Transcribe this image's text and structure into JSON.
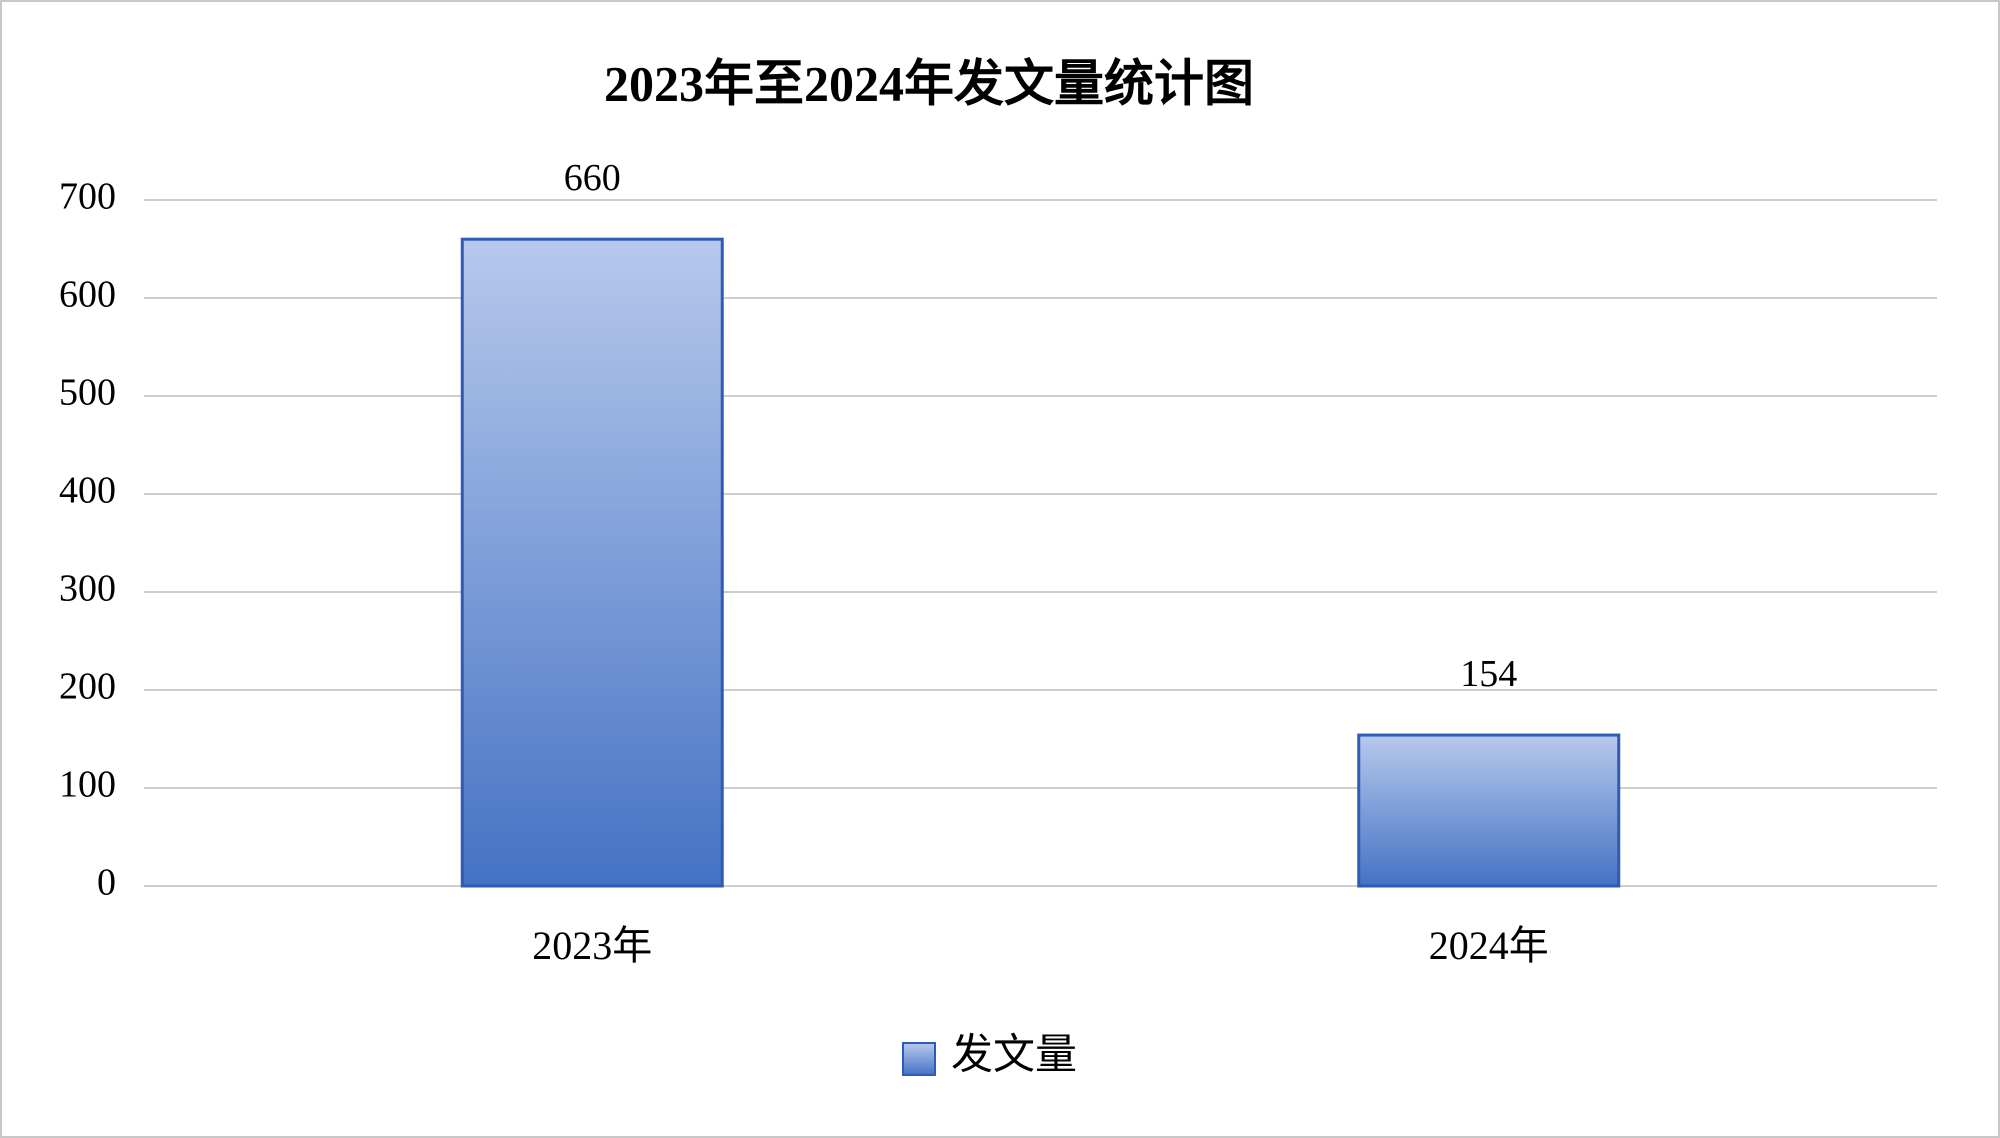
{
  "chart_data": {
    "type": "bar",
    "title": "2023年至2024年发文量统计图",
    "categories": [
      "2023年",
      "2024年"
    ],
    "series": [
      {
        "name": "发文量",
        "color": "#4472c4",
        "values": [
          660,
          154
        ]
      }
    ],
    "ylim": [
      0,
      700
    ],
    "yticks": [
      0,
      100,
      200,
      300,
      400,
      500,
      600,
      700
    ],
    "grid": true,
    "legend": "bottom"
  }
}
